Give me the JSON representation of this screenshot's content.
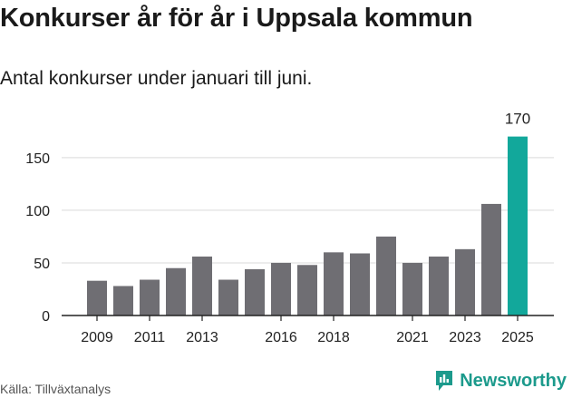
{
  "header": {
    "title": "Konkurser år för år i Uppsala kommun",
    "subtitle": "Antal konkurser under januari till juni."
  },
  "footer": {
    "source": "Källa: Tillväxtanalys",
    "brand": "Newsworthy"
  },
  "colors": {
    "bar": "#6f6e73",
    "highlight": "#12a89b",
    "grid": "#d9d9d9",
    "axis": "#222222",
    "brand": "#1c9a8c"
  },
  "chart_data": {
    "type": "bar",
    "categories": [
      "2009",
      "2010",
      "2011",
      "2012",
      "2013",
      "2014",
      "2015",
      "2016",
      "2017",
      "2018",
      "2019",
      "2020",
      "2021",
      "2022",
      "2023",
      "2024",
      "2025"
    ],
    "values": [
      33,
      28,
      34,
      45,
      56,
      34,
      44,
      50,
      48,
      60,
      59,
      75,
      50,
      56,
      63,
      106,
      170
    ],
    "x_tick_labels": [
      "2009",
      "2011",
      "2013",
      "2016",
      "2018",
      "2021",
      "2023",
      "2025"
    ],
    "y_ticks": [
      0,
      50,
      100,
      150
    ],
    "ylim": [
      0,
      180
    ],
    "grid": true,
    "highlight_index": 16,
    "highlight_label": "170",
    "title": "Konkurser år för år i Uppsala kommun",
    "xlabel": "",
    "ylabel": ""
  }
}
